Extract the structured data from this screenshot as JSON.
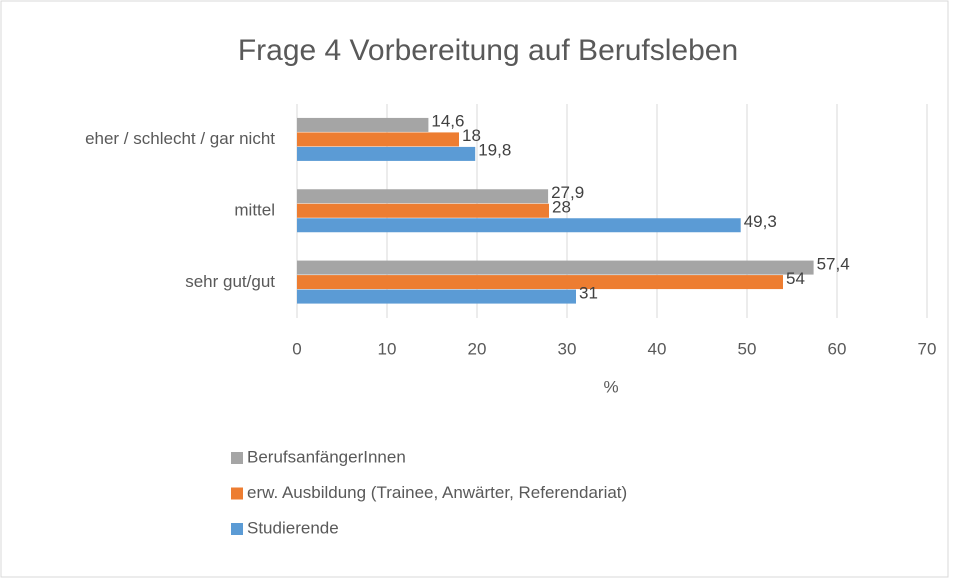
{
  "chart_data": {
    "type": "bar",
    "orientation": "horizontal",
    "title": "Frage 4 Vorbereitung auf Berufsleben",
    "x_label": "%",
    "categories": [
      "eher / schlecht / gar nicht",
      "mittel",
      "sehr gut/gut"
    ],
    "series": [
      {
        "name": "BerufsanfängerInnen",
        "color": "#a5a5a5",
        "values": [
          14.6,
          27.9,
          57.4
        ],
        "value_labels": [
          "14,6",
          "27,9",
          "57,4"
        ]
      },
      {
        "name": "erw. Ausbildung (Trainee, Anwärter, Referendariat)",
        "color": "#ed7d31",
        "values": [
          18,
          28,
          54
        ],
        "value_labels": [
          "18",
          "28",
          "54"
        ]
      },
      {
        "name": "Studierende",
        "color": "#5b9bd5",
        "values": [
          19.8,
          49.3,
          31
        ],
        "value_labels": [
          "19,8",
          "49,3",
          "31"
        ]
      }
    ],
    "xlim": [
      0,
      70
    ],
    "xticks": [
      0,
      10,
      20,
      30,
      40,
      50,
      60,
      70
    ],
    "grid": true,
    "legend": "bottom"
  }
}
